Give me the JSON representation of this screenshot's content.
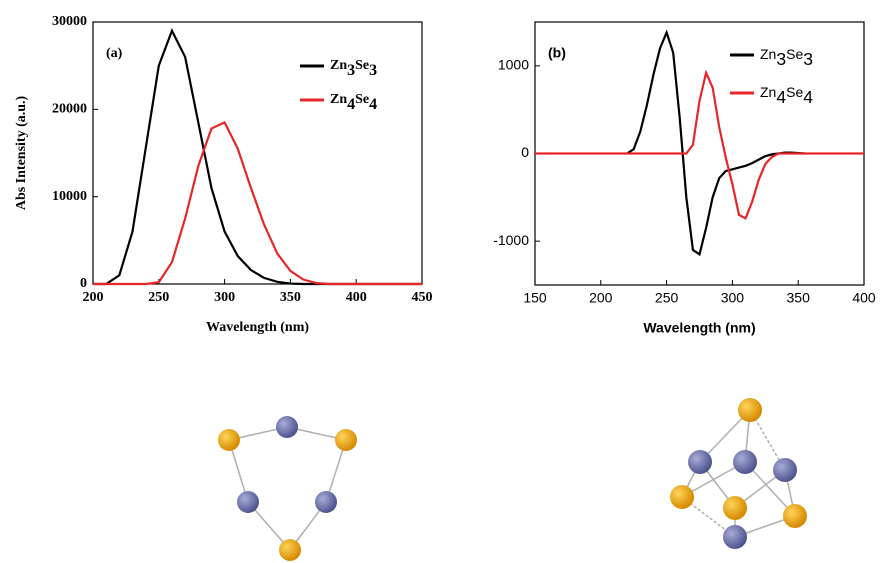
{
  "chart_data": [
    {
      "type": "line",
      "panel_label": "(a)",
      "x_label": "Wavelength (nm)",
      "y_label": "Abs Intensity (a.u.)",
      "xlim": [
        200,
        450
      ],
      "xticks": [
        200,
        250,
        300,
        350,
        400,
        450
      ],
      "ylim": [
        0,
        30000
      ],
      "yticks": [
        0,
        10000,
        20000,
        30000
      ],
      "series": [
        {
          "name": "Zn3Se3",
          "color": "#000000",
          "x": [
            200,
            210,
            220,
            230,
            240,
            250,
            260,
            270,
            280,
            290,
            300,
            310,
            320,
            330,
            340,
            350,
            360,
            370,
            380,
            390,
            400,
            410,
            420,
            430,
            440,
            450
          ],
          "values": [
            0,
            0,
            1000,
            6000,
            15500,
            25000,
            29000,
            26000,
            18500,
            11000,
            6000,
            3200,
            1600,
            700,
            250,
            50,
            0,
            0,
            0,
            0,
            0,
            0,
            0,
            0,
            0,
            0
          ]
        },
        {
          "name": "Zn4Se4",
          "color": "#e8262a",
          "x": [
            200,
            210,
            220,
            230,
            240,
            250,
            260,
            270,
            280,
            290,
            300,
            310,
            320,
            330,
            340,
            350,
            360,
            370,
            380,
            390,
            400,
            410,
            420,
            430,
            440,
            450
          ],
          "values": [
            0,
            0,
            0,
            0,
            0,
            200,
            2500,
            7500,
            13500,
            17800,
            18500,
            15500,
            11000,
            6800,
            3500,
            1500,
            500,
            100,
            0,
            0,
            0,
            0,
            0,
            0,
            0,
            0
          ]
        }
      ]
    },
    {
      "type": "line",
      "panel_label": "(b)",
      "x_label": "Wavelength (nm)",
      "xlim": [
        150,
        400
      ],
      "xticks": [
        150,
        200,
        250,
        300,
        350,
        400
      ],
      "ylim": [
        -1500,
        1500
      ],
      "yticks": [
        -1000,
        0,
        1000
      ],
      "series": [
        {
          "name": "Zn3Se3",
          "color": "#000000",
          "x": [
            220,
            225,
            230,
            235,
            240,
            245,
            250,
            255,
            260,
            265,
            270,
            275,
            280,
            285,
            290,
            295,
            300,
            305,
            310,
            315,
            320,
            325,
            330,
            335,
            340,
            345,
            350,
            355
          ],
          "values": [
            0,
            50,
            250,
            550,
            900,
            1200,
            1380,
            1150,
            400,
            -500,
            -1100,
            -1150,
            -850,
            -500,
            -280,
            -200,
            -180,
            -160,
            -140,
            -110,
            -70,
            -30,
            -10,
            0,
            10,
            10,
            5,
            0
          ]
        },
        {
          "name": "Zn4Se4",
          "color": "#e8262a",
          "x": [
            150,
            260,
            265,
            270,
            275,
            280,
            285,
            290,
            295,
            300,
            305,
            310,
            315,
            320,
            325,
            330,
            335,
            400
          ],
          "values": [
            0,
            0,
            0,
            100,
            600,
            920,
            750,
            300,
            -50,
            -350,
            -700,
            -740,
            -550,
            -300,
            -120,
            -40,
            0,
            0
          ]
        }
      ]
    }
  ]
}
